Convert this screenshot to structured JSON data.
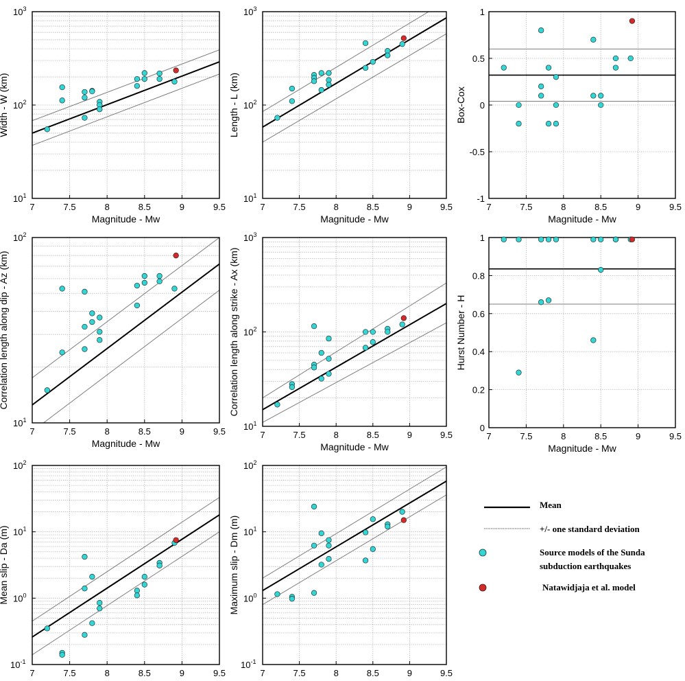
{
  "colors": {
    "source_point": "#35d5d5",
    "natawidjaja_point": "#d42a2a",
    "mean_line": "#000000",
    "std_line": "#7d7d7d",
    "grid": "#b8b8b8"
  },
  "legend": {
    "mean": "Mean",
    "std": "+/- one standard deviation",
    "source_line1": "Source models of the Sunda",
    "source_line2": "subduction earthquakes",
    "natawidjaja": "Natawidjaja et al. model"
  },
  "chart_data": [
    {
      "id": "width",
      "type": "scatter",
      "yscale": "log",
      "xlabel": "Magnitude - Mw",
      "ylabel": "Width - W (km)",
      "xlim": [
        7,
        9.5
      ],
      "ylim": [
        10,
        1000
      ],
      "xticks": [
        "7",
        "7.5",
        "8",
        "8.5",
        "9",
        "9.5"
      ],
      "yticks": [
        {
          "base": "10",
          "exp": "1"
        },
        {
          "base": "10",
          "exp": "2"
        },
        {
          "base": "10",
          "exp": "3"
        }
      ],
      "mean": [
        [
          7,
          50
        ],
        [
          9.5,
          290
        ]
      ],
      "upper": [
        [
          7,
          68
        ],
        [
          9.5,
          390
        ]
      ],
      "lower": [
        [
          7,
          37
        ],
        [
          9.5,
          215
        ]
      ],
      "points": [
        [
          7.2,
          55
        ],
        [
          7.4,
          155
        ],
        [
          7.4,
          112
        ],
        [
          7.7,
          138
        ],
        [
          7.7,
          120
        ],
        [
          7.7,
          73
        ],
        [
          7.8,
          142
        ],
        [
          7.8,
          140
        ],
        [
          7.9,
          108
        ],
        [
          7.9,
          100
        ],
        [
          7.9,
          90
        ],
        [
          8.4,
          190
        ],
        [
          8.4,
          160
        ],
        [
          8.5,
          220
        ],
        [
          8.5,
          190
        ],
        [
          8.7,
          218
        ],
        [
          8.7,
          190
        ],
        [
          8.9,
          178
        ]
      ],
      "natawidjaja": [
        [
          8.92,
          235
        ]
      ]
    },
    {
      "id": "length",
      "type": "scatter",
      "yscale": "log",
      "xlabel": "Magnitude - Mw",
      "ylabel": "Length - L (km)",
      "xlim": [
        7,
        9.5
      ],
      "ylim": [
        10,
        1000
      ],
      "xticks": [
        "7",
        "7.5",
        "8",
        "8.5",
        "9",
        "9.5"
      ],
      "yticks": [
        {
          "base": "10",
          "exp": "1"
        },
        {
          "base": "10",
          "exp": "2"
        },
        {
          "base": "10",
          "exp": "3"
        }
      ],
      "mean": [
        [
          7,
          58
        ],
        [
          9.5,
          860
        ]
      ],
      "upper": [
        [
          7,
          85
        ],
        [
          9.5,
          1300
        ]
      ],
      "lower": [
        [
          7,
          40
        ],
        [
          9.5,
          580
        ]
      ],
      "points": [
        [
          7.2,
          73
        ],
        [
          7.4,
          150
        ],
        [
          7.4,
          110
        ],
        [
          7.7,
          210
        ],
        [
          7.7,
          195
        ],
        [
          7.7,
          180
        ],
        [
          7.8,
          220
        ],
        [
          7.8,
          145
        ],
        [
          7.9,
          220
        ],
        [
          7.9,
          185
        ],
        [
          7.9,
          165
        ],
        [
          8.4,
          460
        ],
        [
          8.4,
          250
        ],
        [
          8.5,
          290
        ],
        [
          8.7,
          380
        ],
        [
          8.7,
          340
        ],
        [
          8.9,
          450
        ]
      ],
      "natawidjaja": [
        [
          8.92,
          520
        ]
      ]
    },
    {
      "id": "boxcox",
      "type": "scatter",
      "yscale": "linear",
      "xlabel": "Magnitude - Mw",
      "ylabel": "Box-Cox",
      "xlim": [
        7,
        9.5
      ],
      "ylim": [
        -1,
        1
      ],
      "xticks": [
        "7",
        "7.5",
        "8",
        "8.5",
        "9",
        "9.5"
      ],
      "yticks": [
        "-1",
        "-0.5",
        "0",
        "0.5",
        "1"
      ],
      "yvals": [
        -1,
        -0.5,
        0,
        0.5,
        1
      ],
      "ygrid": [
        -0.5,
        0,
        0.5
      ],
      "mean_h": 0.32,
      "upper_h": 0.6,
      "lower_h": 0.04,
      "points": [
        [
          7.2,
          0.4
        ],
        [
          7.4,
          0.0
        ],
        [
          7.4,
          -0.2
        ],
        [
          7.7,
          0.8
        ],
        [
          7.7,
          0.2
        ],
        [
          7.7,
          0.1
        ],
        [
          7.8,
          0.4
        ],
        [
          7.8,
          -0.2
        ],
        [
          7.9,
          0.3
        ],
        [
          7.9,
          0.0
        ],
        [
          7.9,
          -0.2
        ],
        [
          8.4,
          0.7
        ],
        [
          8.4,
          0.1
        ],
        [
          8.5,
          0.1
        ],
        [
          8.5,
          0.0
        ],
        [
          8.7,
          0.5
        ],
        [
          8.7,
          0.4
        ],
        [
          8.9,
          0.5
        ]
      ],
      "natawidjaja": [
        [
          8.92,
          0.9
        ]
      ]
    },
    {
      "id": "az",
      "type": "scatter",
      "yscale": "log",
      "xlabel": "Magnitude - Mw",
      "ylabel": "Correlation length along dip - Az (km)",
      "xlim": [
        7,
        9.5
      ],
      "ylim": [
        10,
        100
      ],
      "xticks": [
        "7",
        "7.5",
        "8",
        "8.5",
        "9",
        "9.5"
      ],
      "yticks": [
        {
          "base": "10",
          "exp": "1"
        },
        {
          "base": "10",
          "exp": "2"
        }
      ],
      "mean": [
        [
          7,
          12.5
        ],
        [
          9.5,
          72
        ]
      ],
      "upper": [
        [
          7,
          17.5
        ],
        [
          9.5,
          100
        ]
      ],
      "lower": [
        [
          7,
          9
        ],
        [
          9.5,
          52
        ]
      ],
      "points": [
        [
          7.2,
          15
        ],
        [
          7.4,
          53
        ],
        [
          7.4,
          24
        ],
        [
          7.7,
          51
        ],
        [
          7.7,
          33
        ],
        [
          7.7,
          25
        ],
        [
          7.8,
          39
        ],
        [
          7.8,
          35
        ],
        [
          7.9,
          37
        ],
        [
          7.9,
          31
        ],
        [
          7.9,
          28
        ],
        [
          8.4,
          55
        ],
        [
          8.4,
          43
        ],
        [
          8.5,
          62
        ],
        [
          8.5,
          57
        ],
        [
          8.7,
          62
        ],
        [
          8.7,
          58
        ],
        [
          8.9,
          53
        ]
      ],
      "natawidjaja": [
        [
          8.92,
          80
        ]
      ]
    },
    {
      "id": "ax",
      "type": "scatter",
      "yscale": "log",
      "xlabel": "Magnitude - Mw",
      "ylabel": "Correlation length along strike - Ax (km)",
      "xlim": [
        7,
        9.5
      ],
      "ylim": [
        10,
        1000
      ],
      "xticks": [
        "7",
        "7.5",
        "8",
        "8.5",
        "9",
        "9.5"
      ],
      "yticks": [
        {
          "base": "10",
          "exp": "1"
        },
        {
          "base": "10",
          "exp": "2"
        },
        {
          "base": "10",
          "exp": "3"
        }
      ],
      "mean": [
        [
          7,
          15
        ],
        [
          9.5,
          200
        ]
      ],
      "upper": [
        [
          7,
          20
        ],
        [
          9.5,
          330
        ]
      ],
      "lower": [
        [
          7,
          11
        ],
        [
          9.5,
          125
        ]
      ],
      "points": [
        [
          7.2,
          17
        ],
        [
          7.4,
          28
        ],
        [
          7.4,
          26
        ],
        [
          7.7,
          115
        ],
        [
          7.7,
          45
        ],
        [
          7.7,
          42
        ],
        [
          7.8,
          60
        ],
        [
          7.8,
          32
        ],
        [
          7.9,
          85
        ],
        [
          7.9,
          52
        ],
        [
          7.9,
          36
        ],
        [
          8.4,
          100
        ],
        [
          8.4,
          68
        ],
        [
          8.5,
          100
        ],
        [
          8.5,
          78
        ],
        [
          8.7,
          108
        ],
        [
          8.7,
          100
        ],
        [
          8.9,
          120
        ]
      ],
      "natawidjaja": [
        [
          8.92,
          140
        ]
      ]
    },
    {
      "id": "hurst",
      "type": "scatter",
      "yscale": "linear",
      "xlabel": "Magnitude - Mw",
      "ylabel": "Hurst Number - H",
      "xlim": [
        7,
        9.5
      ],
      "ylim": [
        0,
        1
      ],
      "xticks": [
        "7",
        "7.5",
        "8",
        "8.5",
        "9",
        "9.5"
      ],
      "yticks": [
        "0",
        "0.2",
        "0.4",
        "0.6",
        "0.8",
        "1"
      ],
      "yvals": [
        0,
        0.2,
        0.4,
        0.6,
        0.8,
        1
      ],
      "ygrid": [
        0.2,
        0.4,
        0.6,
        0.8
      ],
      "mean_h": 0.835,
      "upper_h": 1.0,
      "lower_h": 0.65,
      "points": [
        [
          7.2,
          0.99
        ],
        [
          7.4,
          0.99
        ],
        [
          7.4,
          0.29
        ],
        [
          7.7,
          0.99
        ],
        [
          7.7,
          0.66
        ],
        [
          7.8,
          0.99
        ],
        [
          7.8,
          0.67
        ],
        [
          7.9,
          0.99
        ],
        [
          8.4,
          0.99
        ],
        [
          8.4,
          0.46
        ],
        [
          8.5,
          0.99
        ],
        [
          8.5,
          0.83
        ],
        [
          8.7,
          0.99
        ],
        [
          8.7,
          0.99
        ],
        [
          8.9,
          0.99
        ]
      ],
      "natawidjaja": [
        [
          8.92,
          0.99
        ]
      ]
    },
    {
      "id": "da",
      "type": "scatter",
      "yscale": "log",
      "xlabel": "Magnitude - Mw",
      "ylabel": "Mean slip - Da (m)",
      "xlim": [
        7,
        9.5
      ],
      "ylim": [
        0.1,
        100
      ],
      "xticks": [
        "7",
        "7.5",
        "8",
        "8.5",
        "9",
        "9.5"
      ],
      "yticks": [
        {
          "base": "10",
          "exp": "-1"
        },
        {
          "base": "10",
          "exp": "0"
        },
        {
          "base": "10",
          "exp": "1"
        },
        {
          "base": "10",
          "exp": "2"
        }
      ],
      "mean": [
        [
          7,
          0.26
        ],
        [
          9.5,
          18
        ]
      ],
      "upper": [
        [
          7,
          0.45
        ],
        [
          9.5,
          33
        ]
      ],
      "lower": [
        [
          7,
          0.14
        ],
        [
          9.5,
          10
        ]
      ],
      "points": [
        [
          7.2,
          0.35
        ],
        [
          7.4,
          0.15
        ],
        [
          7.4,
          0.14
        ],
        [
          7.7,
          4.2
        ],
        [
          7.7,
          1.4
        ],
        [
          7.7,
          0.28
        ],
        [
          7.8,
          2.1
        ],
        [
          7.8,
          0.42
        ],
        [
          7.9,
          0.85
        ],
        [
          7.9,
          0.7
        ],
        [
          8.4,
          1.3
        ],
        [
          8.4,
          1.1
        ],
        [
          8.5,
          2.1
        ],
        [
          8.5,
          1.6
        ],
        [
          8.7,
          3.4
        ],
        [
          8.7,
          3.1
        ],
        [
          8.9,
          6.8
        ]
      ],
      "natawidjaja": [
        [
          8.92,
          7.5
        ]
      ]
    },
    {
      "id": "dm",
      "type": "scatter",
      "yscale": "log",
      "xlabel": "Magnitude - Mw",
      "ylabel": "Maximum slip - Dm (m)",
      "xlim": [
        7,
        9.5
      ],
      "ylim": [
        0.1,
        100
      ],
      "xticks": [
        "7",
        "7.5",
        "8",
        "8.5",
        "9",
        "9.5"
      ],
      "yticks": [
        {
          "base": "10",
          "exp": "-1"
        },
        {
          "base": "10",
          "exp": "0"
        },
        {
          "base": "10",
          "exp": "1"
        },
        {
          "base": "10",
          "exp": "2"
        }
      ],
      "mean": [
        [
          7,
          1.3
        ],
        [
          9.5,
          58
        ]
      ],
      "upper": [
        [
          7,
          2.0
        ],
        [
          9.5,
          95
        ]
      ],
      "lower": [
        [
          7,
          0.8
        ],
        [
          9.5,
          36
        ]
      ],
      "points": [
        [
          7.2,
          1.15
        ],
        [
          7.4,
          1.05
        ],
        [
          7.4,
          0.98
        ],
        [
          7.7,
          24
        ],
        [
          7.7,
          6.2
        ],
        [
          7.7,
          1.2
        ],
        [
          7.8,
          9.5
        ],
        [
          7.8,
          3.2
        ],
        [
          7.9,
          7.5
        ],
        [
          7.9,
          6.2
        ],
        [
          7.9,
          3.9
        ],
        [
          8.4,
          9.8
        ],
        [
          8.4,
          3.7
        ],
        [
          8.5,
          15.5
        ],
        [
          8.5,
          5.5
        ],
        [
          8.7,
          13
        ],
        [
          8.7,
          12
        ],
        [
          8.9,
          20
        ]
      ],
      "natawidjaja": [
        [
          8.92,
          15
        ]
      ]
    }
  ]
}
